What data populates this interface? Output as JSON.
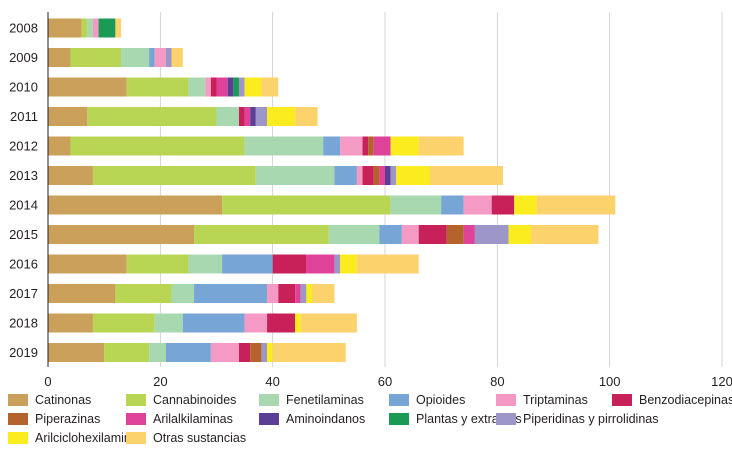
{
  "chart_data": {
    "type": "bar",
    "orientation": "horizontal",
    "stacked": true,
    "title": "",
    "xlabel": "",
    "ylabel": "",
    "xlim": [
      0,
      120
    ],
    "xticks": [
      0,
      20,
      40,
      60,
      80,
      100,
      120
    ],
    "grid": "vertical",
    "legend_position": "bottom",
    "categories": [
      "2008",
      "2009",
      "2010",
      "2011",
      "2012",
      "2013",
      "2014",
      "2015",
      "2016",
      "2017",
      "2018",
      "2019"
    ],
    "series": [
      {
        "name": "Catinonas",
        "color": "#cba05a",
        "values": [
          6,
          4,
          14,
          7,
          4,
          8,
          31,
          26,
          14,
          12,
          8,
          10
        ]
      },
      {
        "name": "Cannabinoides",
        "color": "#b8d654",
        "values": [
          1,
          9,
          11,
          23,
          31,
          29,
          30,
          24,
          11,
          10,
          11,
          8
        ]
      },
      {
        "name": "Fenetilaminas",
        "color": "#a8d8b0",
        "values": [
          1,
          5,
          3,
          4,
          14,
          14,
          9,
          9,
          6,
          4,
          5,
          3
        ]
      },
      {
        "name": "Opioides",
        "color": "#77a6d6",
        "values": [
          0,
          1,
          0,
          0,
          3,
          4,
          4,
          4,
          9,
          13,
          11,
          8
        ]
      },
      {
        "name": "Triptaminas",
        "color": "#f49ac4",
        "values": [
          1,
          2,
          1,
          0,
          4,
          1,
          5,
          3,
          0,
          2,
          4,
          5
        ]
      },
      {
        "name": "Benzodiacepinas",
        "color": "#c8215a",
        "values": [
          0,
          0,
          1,
          1,
          1,
          2,
          4,
          5,
          6,
          3,
          5,
          2
        ]
      },
      {
        "name": "Piperazinas",
        "color": "#b5632c",
        "values": [
          0,
          0,
          0,
          0,
          1,
          1,
          0,
          3,
          0,
          0,
          0,
          2
        ]
      },
      {
        "name": "Arilalkilaminas",
        "color": "#de4399",
        "values": [
          0,
          0,
          2,
          1,
          3,
          1,
          0,
          2,
          5,
          1,
          0,
          0
        ]
      },
      {
        "name": "Aminoindanos",
        "color": "#5b3e96",
        "values": [
          0,
          0,
          1,
          1,
          0,
          1,
          0,
          0,
          0,
          0,
          0,
          0
        ]
      },
      {
        "name": "Plantas y extractos",
        "color": "#1b9a55",
        "values": [
          3,
          0,
          1,
          0,
          0,
          0,
          0,
          0,
          0,
          0,
          0,
          0
        ]
      },
      {
        "name": "Piperidinas y pirrolidinas",
        "color": "#9c97c8",
        "values": [
          0,
          1,
          1,
          2,
          0,
          1,
          0,
          6,
          1,
          1,
          0,
          1
        ]
      },
      {
        "name": "Arilciclohexilaminas",
        "color": "#fbec1f",
        "values": [
          0,
          0,
          3,
          5,
          5,
          6,
          4,
          4,
          3,
          1,
          1,
          1
        ]
      },
      {
        "name": "Otras sustancias",
        "color": "#fbd26b",
        "values": [
          1,
          2,
          3,
          4,
          8,
          13,
          14,
          12,
          11,
          4,
          10,
          13
        ]
      }
    ]
  }
}
